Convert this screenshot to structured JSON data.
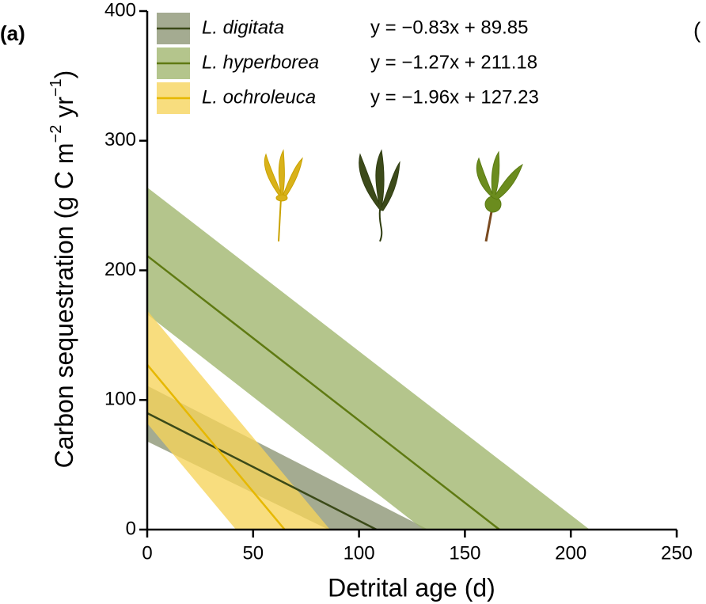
{
  "chart_data": {
    "type": "line",
    "panel_label": "(a)",
    "next_panel_label": "(",
    "x_label": "Detrital age (d)",
    "y_label_parts": [
      "Carbon sequestration (g C m",
      "−2",
      " yr",
      "−1",
      ")"
    ],
    "xlim": [
      0,
      250
    ],
    "xticks": [
      0,
      50,
      100,
      150,
      200,
      250
    ],
    "ylim": [
      0,
      400
    ],
    "yticks": [
      0,
      100,
      200,
      300,
      400
    ],
    "grid": false,
    "legend": "upper left",
    "series": [
      {
        "name": "L. digitata",
        "equation": "y = −0.83x + 89.85",
        "color": "#3b4a18",
        "band_color": "#8b9472",
        "x": [
          0,
          108.25
        ],
        "values": [
          89.85,
          0
        ],
        "band_x": [
          0,
          132.7,
          85.6,
          0
        ],
        "band_y": [
          111,
          0,
          0,
          68
        ]
      },
      {
        "name": "L. hyperborea",
        "equation": "y = −1.27x + 211.18",
        "color": "#5f7a12",
        "band_color": "#9fb56b",
        "x": [
          0,
          166.3
        ],
        "values": [
          211.18,
          0
        ],
        "band_x": [
          0,
          208.9,
          130.4,
          0
        ],
        "band_y": [
          264,
          0,
          0,
          166
        ]
      },
      {
        "name": "L. ochroleuca",
        "equation": "y = −1.96x + 127.23",
        "color": "#e6b800",
        "band_color": "#f6d45a",
        "x": [
          0,
          64.9
        ],
        "values": [
          127.23,
          0
        ],
        "band_x": [
          0,
          86.3,
          41.9,
          0
        ],
        "band_y": [
          169,
          0,
          0,
          82
        ]
      }
    ]
  }
}
